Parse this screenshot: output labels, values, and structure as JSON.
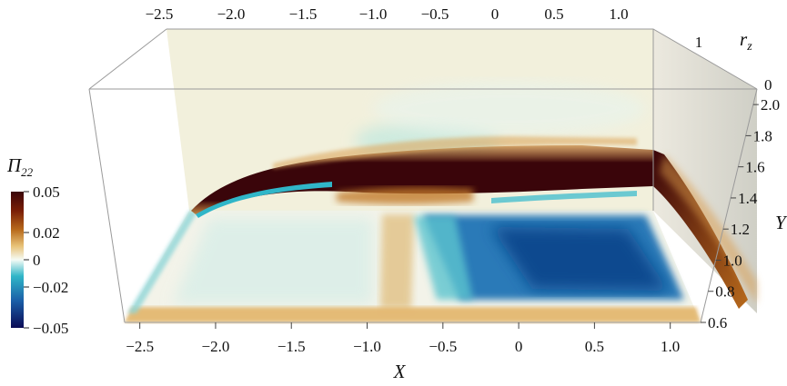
{
  "chart_data": {
    "type": "heatmap",
    "variable": "Π22",
    "colorbar": {
      "title": "Π22",
      "ticks": [
        0.05,
        0.02,
        0,
        -0.02,
        -0.05
      ],
      "tick_labels": [
        "0.05",
        "0.02",
        "0",
        "−0.02",
        "−0.05"
      ],
      "range": [
        -0.05,
        0.05
      ],
      "colors": [
        "#0b0b55",
        "#1b5fa8",
        "#30b6c8",
        "#f5fbf5",
        "#e8c278",
        "#b86a1c",
        "#7a1e06",
        "#3a050a"
      ]
    },
    "x_axis": {
      "label": "X",
      "ticks": [
        -2.5,
        -2.0,
        -1.5,
        -1.0,
        -0.5,
        0,
        0.5,
        1.0
      ],
      "tick_labels": [
        "−2.5",
        "−2.0",
        "−1.5",
        "−1.0",
        "−0.5",
        "0",
        "0.5",
        "1.0"
      ],
      "range": [
        -2.6,
        1.2
      ]
    },
    "y_axis": {
      "label": "Y",
      "ticks": [
        0.6,
        0.8,
        1.0,
        1.2,
        1.4,
        1.6,
        1.8,
        2.0
      ],
      "tick_labels": [
        "0.6",
        "0.8",
        "1.0",
        "1.2",
        "1.4",
        "1.6",
        "1.8",
        "2.0"
      ],
      "range": [
        0.6,
        2.1
      ]
    },
    "z_axis": {
      "label": "r_z",
      "ticks": [
        0,
        1
      ],
      "tick_labels": [
        "0",
        "1"
      ]
    },
    "top_axis_ticks": [
      "−2.5",
      "−2.0",
      "−1.5",
      "−1.0",
      "−0.5",
      "0",
      "0.5",
      "1.0"
    ],
    "features": [
      {
        "plane": "back",
        "region": "shear layer band",
        "x": [
          -2.1,
          1.2
        ],
        "y": [
          1.45,
          1.75
        ],
        "value": 0.05
      },
      {
        "plane": "back",
        "region": "thin negative streak below band",
        "x": [
          -2.1,
          -1.0
        ],
        "y": [
          1.4,
          1.5
        ],
        "value": -0.02
      },
      {
        "plane": "floor",
        "region": "negative patch",
        "x": [
          -0.6,
          1.1
        ],
        "y": [
          0.8,
          1.4
        ],
        "value": -0.04
      },
      {
        "plane": "floor",
        "region": "positive stripe",
        "x": [
          -0.95,
          -0.75
        ],
        "y": [
          0.7,
          1.45
        ],
        "value": 0.015
      }
    ]
  }
}
